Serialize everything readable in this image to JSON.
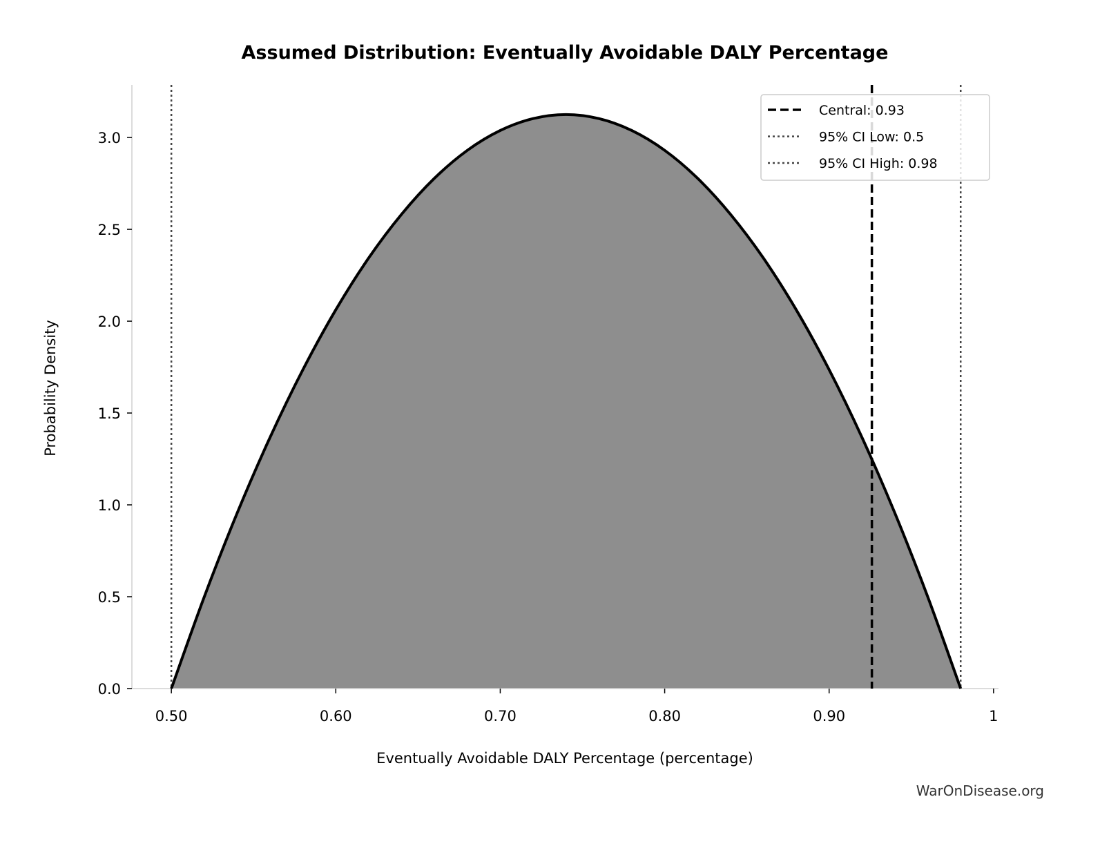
{
  "chart_data": {
    "type": "area",
    "title": "Assumed Distribution: Eventually Avoidable DALY Percentage",
    "xlabel": "Eventually Avoidable DALY Percentage (percentage)",
    "ylabel": "Probability Density",
    "xlim": [
      0.476,
      1.003
    ],
    "ylim": [
      0,
      3.286
    ],
    "xticks": [
      0.5,
      0.6,
      0.7,
      0.8,
      0.9,
      1.0
    ],
    "xtick_labels": [
      "0.50",
      "0.60",
      "0.70",
      "0.80",
      "0.90",
      "1"
    ],
    "yticks": [
      0,
      0.5,
      1,
      1.5,
      2,
      2.5,
      3
    ],
    "ytick_labels": [
      "0.0",
      "0.5",
      "1.0",
      "1.5",
      "2.0",
      "2.5",
      "3.0"
    ],
    "grid": false,
    "legend_placement": "upper-right",
    "fill_color": "#8e8e8e",
    "line_color": "#000000",
    "ci_color": "#444444",
    "curve": {
      "x": [
        0.5,
        0.52,
        0.54,
        0.56,
        0.58,
        0.6,
        0.62,
        0.64,
        0.66,
        0.68,
        0.7,
        0.72,
        0.74,
        0.76,
        0.78,
        0.8,
        0.82,
        0.84,
        0.86,
        0.88,
        0.9,
        0.92,
        0.94,
        0.96,
        0.98
      ],
      "y": [
        0,
        0.499,
        0.955,
        1.367,
        1.736,
        2.062,
        2.344,
        2.582,
        2.778,
        2.93,
        3.038,
        3.103,
        3.125,
        3.103,
        3.038,
        2.93,
        2.778,
        2.582,
        2.344,
        2.062,
        1.736,
        1.367,
        0.955,
        0.499,
        0
      ]
    },
    "vlines": [
      {
        "name": "Central: 0.93",
        "x": 0.926,
        "style": "dashed"
      },
      {
        "name": "95% CI Low: 0.5",
        "x": 0.5,
        "style": "dotted"
      },
      {
        "name": "95% CI High: 0.98",
        "x": 0.98,
        "style": "dotted"
      }
    ],
    "watermark": "WarOnDisease.org"
  }
}
